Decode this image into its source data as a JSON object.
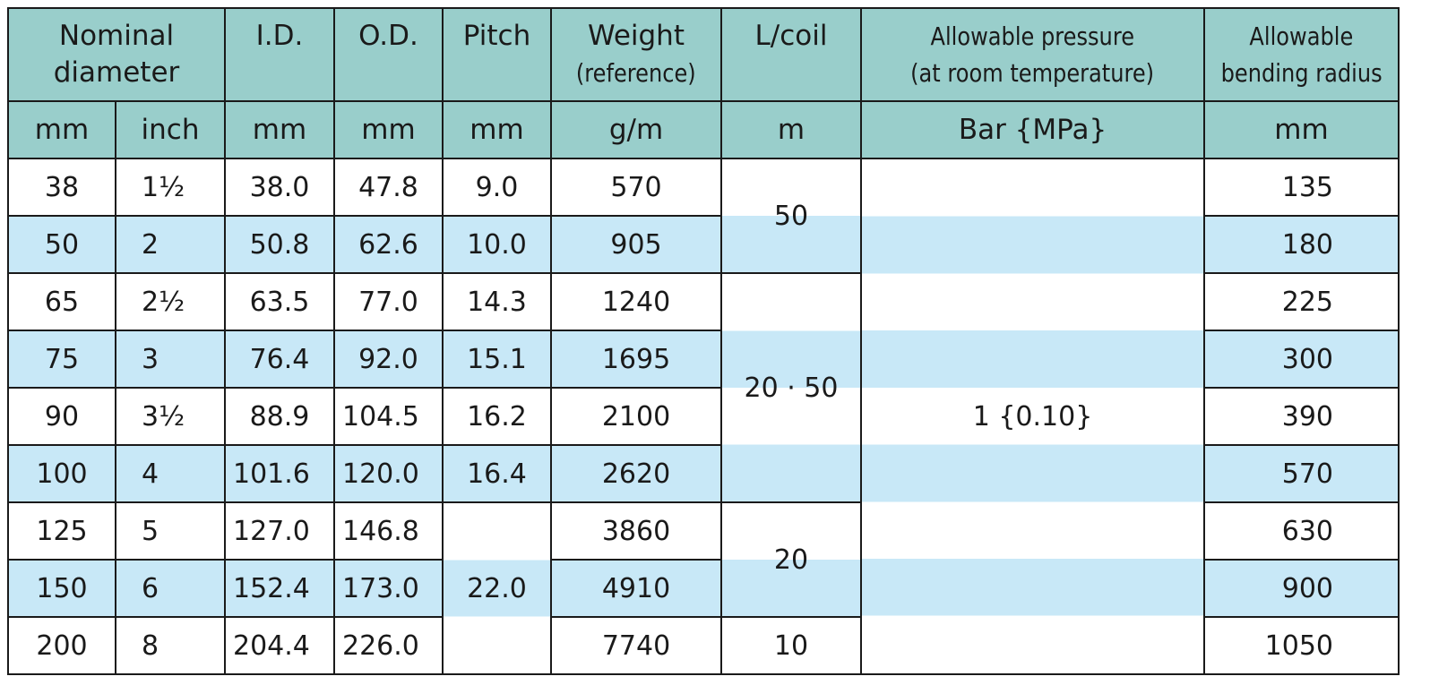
{
  "header": {
    "nominal_diameter": "Nominal diameter",
    "nominal_diameter_line1": "Nominal",
    "nominal_diameter_line2": "diameter",
    "id": "I.D.",
    "od": "O.D.",
    "pitch": "Pitch",
    "weight_line1": "Weight",
    "weight_line2": "(reference)",
    "lcoil": "L/coil",
    "pressure_line1": "Allowable pressure",
    "pressure_line2": "(at room temperature)",
    "radius_line1": "Allowable",
    "radius_line2": "bending radius"
  },
  "units": {
    "nominal_mm": "mm",
    "nominal_inch": "inch",
    "id": "mm",
    "od": "mm",
    "pitch": "mm",
    "weight": "g/m",
    "lcoil": "m",
    "pressure": "Bar {MPa}",
    "radius": "mm"
  },
  "rows": [
    {
      "mm": "38",
      "inch": "1½",
      "id": "38.0",
      "od": "47.8",
      "pitch": "9.0",
      "weight": "570",
      "radius": "135"
    },
    {
      "mm": "50",
      "inch": "2",
      "id": "50.8",
      "od": "62.6",
      "pitch": "10.0",
      "weight": "905",
      "radius": "180"
    },
    {
      "mm": "65",
      "inch": "2½",
      "id": "63.5",
      "od": "77.0",
      "pitch": "14.3",
      "weight": "1240",
      "radius": "225"
    },
    {
      "mm": "75",
      "inch": "3",
      "id": "76.4",
      "od": "92.0",
      "pitch": "15.1",
      "weight": "1695",
      "radius": "300"
    },
    {
      "mm": "90",
      "inch": "3½",
      "id": "88.9",
      "od": "104.5",
      "pitch": "16.2",
      "weight": "2100",
      "radius": "390"
    },
    {
      "mm": "100",
      "inch": "4",
      "id": "101.6",
      "od": "120.0",
      "pitch": "16.4",
      "weight": "2620",
      "radius": "570"
    },
    {
      "mm": "125",
      "inch": "5",
      "id": "127.0",
      "od": "146.8",
      "pitch": "",
      "weight": "3860",
      "radius": "630"
    },
    {
      "mm": "150",
      "inch": "6",
      "id": "152.4",
      "od": "173.0",
      "pitch": "22.0",
      "weight": "4910",
      "radius": "900"
    },
    {
      "mm": "200",
      "inch": "8",
      "id": "204.4",
      "od": "226.0",
      "pitch": "",
      "weight": "7740",
      "radius": "1050"
    }
  ],
  "merged": {
    "lcoil_a": "50",
    "lcoil_b": "20 · 50",
    "lcoil_c": "20",
    "lcoil_d": "10",
    "pressure": "1 {0.10}",
    "pitch_large": "22.0"
  },
  "colors": {
    "header_bg": "#99cecb",
    "stripe_blue": "#c8e8f7",
    "stripe_white": "#ffffff",
    "border": "#1a1a1a"
  }
}
